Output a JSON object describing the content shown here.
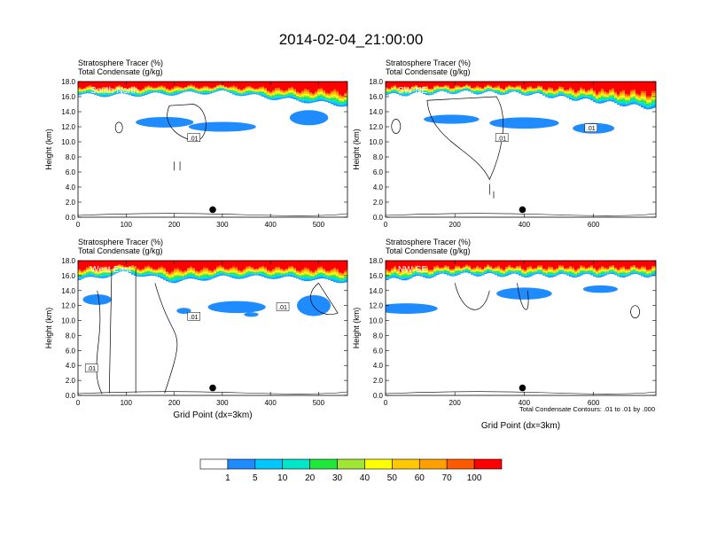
{
  "figure": {
    "title": "2014-02-04_21:00:00",
    "contour_note": "Total Condensate Contours: .01 to .01 by .000"
  },
  "colorbar": {
    "colors": [
      "#ffffff",
      "#1e8cff",
      "#00c8ff",
      "#00e6c8",
      "#20e83a",
      "#a0e632",
      "#ffff00",
      "#ffc800",
      "#ffa000",
      "#ff5a00",
      "#ff0000"
    ],
    "labels": [
      "1",
      "5",
      "10",
      "20",
      "30",
      "40",
      "50",
      "60",
      "70",
      "100"
    ]
  },
  "chart_data": [
    {
      "type": "heatmap",
      "panel_label": "South-North",
      "title_line1": "Stratosphere Tracer   (%)",
      "title_line2": "Total Condensate   (g/kg)",
      "ylabel": "Height (km)",
      "xlabel": "",
      "xlim": [
        0,
        560
      ],
      "ylim": [
        0,
        18
      ],
      "xticks": [
        "0",
        "100",
        "200",
        "300",
        "400",
        "500"
      ],
      "yticks": [
        "0.0",
        "2.0",
        "4.0",
        "6.0",
        "8.0",
        "10.0",
        "12.0",
        "14.0",
        "16.0",
        "18.0"
      ],
      "tracer_top_km": 18.0,
      "tracer_gradient_base_km": [
        [
          0,
          16.2
        ],
        [
          100,
          16.2
        ],
        [
          200,
          16.4
        ],
        [
          300,
          16.6
        ],
        [
          400,
          15.8
        ],
        [
          500,
          15.2
        ],
        [
          560,
          14.8
        ]
      ],
      "marker_x": 280,
      "contour_labels": [
        ".01"
      ]
    },
    {
      "type": "heatmap",
      "panel_label": "SW-NE",
      "title_line1": "Stratosphere Tracer   (%)",
      "title_line2": "Total Condensate   (g/kg)",
      "ylabel": "Height (km)",
      "xlabel": "",
      "xlim": [
        0,
        780
      ],
      "ylim": [
        0,
        18
      ],
      "xticks": [
        "0",
        "200",
        "400",
        "600"
      ],
      "yticks": [
        "0.0",
        "2.0",
        "4.0",
        "6.0",
        "8.0",
        "10.0",
        "12.0",
        "14.0",
        "16.0",
        "18.0"
      ],
      "tracer_top_km": 18.0,
      "tracer_gradient_base_km": [
        [
          0,
          16.2
        ],
        [
          200,
          16.6
        ],
        [
          400,
          16.4
        ],
        [
          600,
          15.4
        ],
        [
          780,
          14.4
        ]
      ],
      "marker_x": 395,
      "contour_labels": [
        ".01",
        ".01"
      ]
    },
    {
      "type": "heatmap",
      "panel_label": "West-East",
      "title_line1": "Stratosphere Tracer   (%)",
      "title_line2": "Total Condensate   (g/kg)",
      "ylabel": "Height (km)",
      "xlabel": "Grid Point (dx=3km)",
      "xlim": [
        0,
        560
      ],
      "ylim": [
        0,
        18
      ],
      "xticks": [
        "0",
        "100",
        "200",
        "300",
        "400",
        "500"
      ],
      "yticks": [
        "0.0",
        "2.0",
        "4.0",
        "6.0",
        "8.0",
        "10.0",
        "12.0",
        "14.0",
        "16.0",
        "18.0"
      ],
      "tracer_top_km": 18.0,
      "tracer_gradient_base_km": [
        [
          0,
          15.4
        ],
        [
          100,
          16.4
        ],
        [
          200,
          15.2
        ],
        [
          300,
          15.8
        ],
        [
          400,
          15.8
        ],
        [
          500,
          15.4
        ],
        [
          560,
          15.2
        ]
      ],
      "marker_x": 280,
      "contour_labels": [
        ".01",
        ".01",
        ".01"
      ]
    },
    {
      "type": "heatmap",
      "panel_label": "NW-SE",
      "title_line1": "Stratosphere Tracer   (%)",
      "title_line2": "Total Condensate   (g/kg)",
      "ylabel": "Height (km)",
      "xlabel": "Grid Point (dx=3km)",
      "xlim": [
        0,
        780
      ],
      "ylim": [
        0,
        18
      ],
      "xticks": [
        "0",
        "200",
        "400",
        "600"
      ],
      "yticks": [
        "0.0",
        "2.0",
        "4.0",
        "6.0",
        "8.0",
        "10.0",
        "12.0",
        "14.0",
        "16.0",
        "18.0"
      ],
      "tracer_top_km": 18.0,
      "tracer_gradient_base_km": [
        [
          0,
          15.4
        ],
        [
          200,
          16.2
        ],
        [
          400,
          16.0
        ],
        [
          600,
          16.0
        ],
        [
          780,
          16.0
        ]
      ],
      "marker_x": 395,
      "contour_labels": []
    }
  ]
}
